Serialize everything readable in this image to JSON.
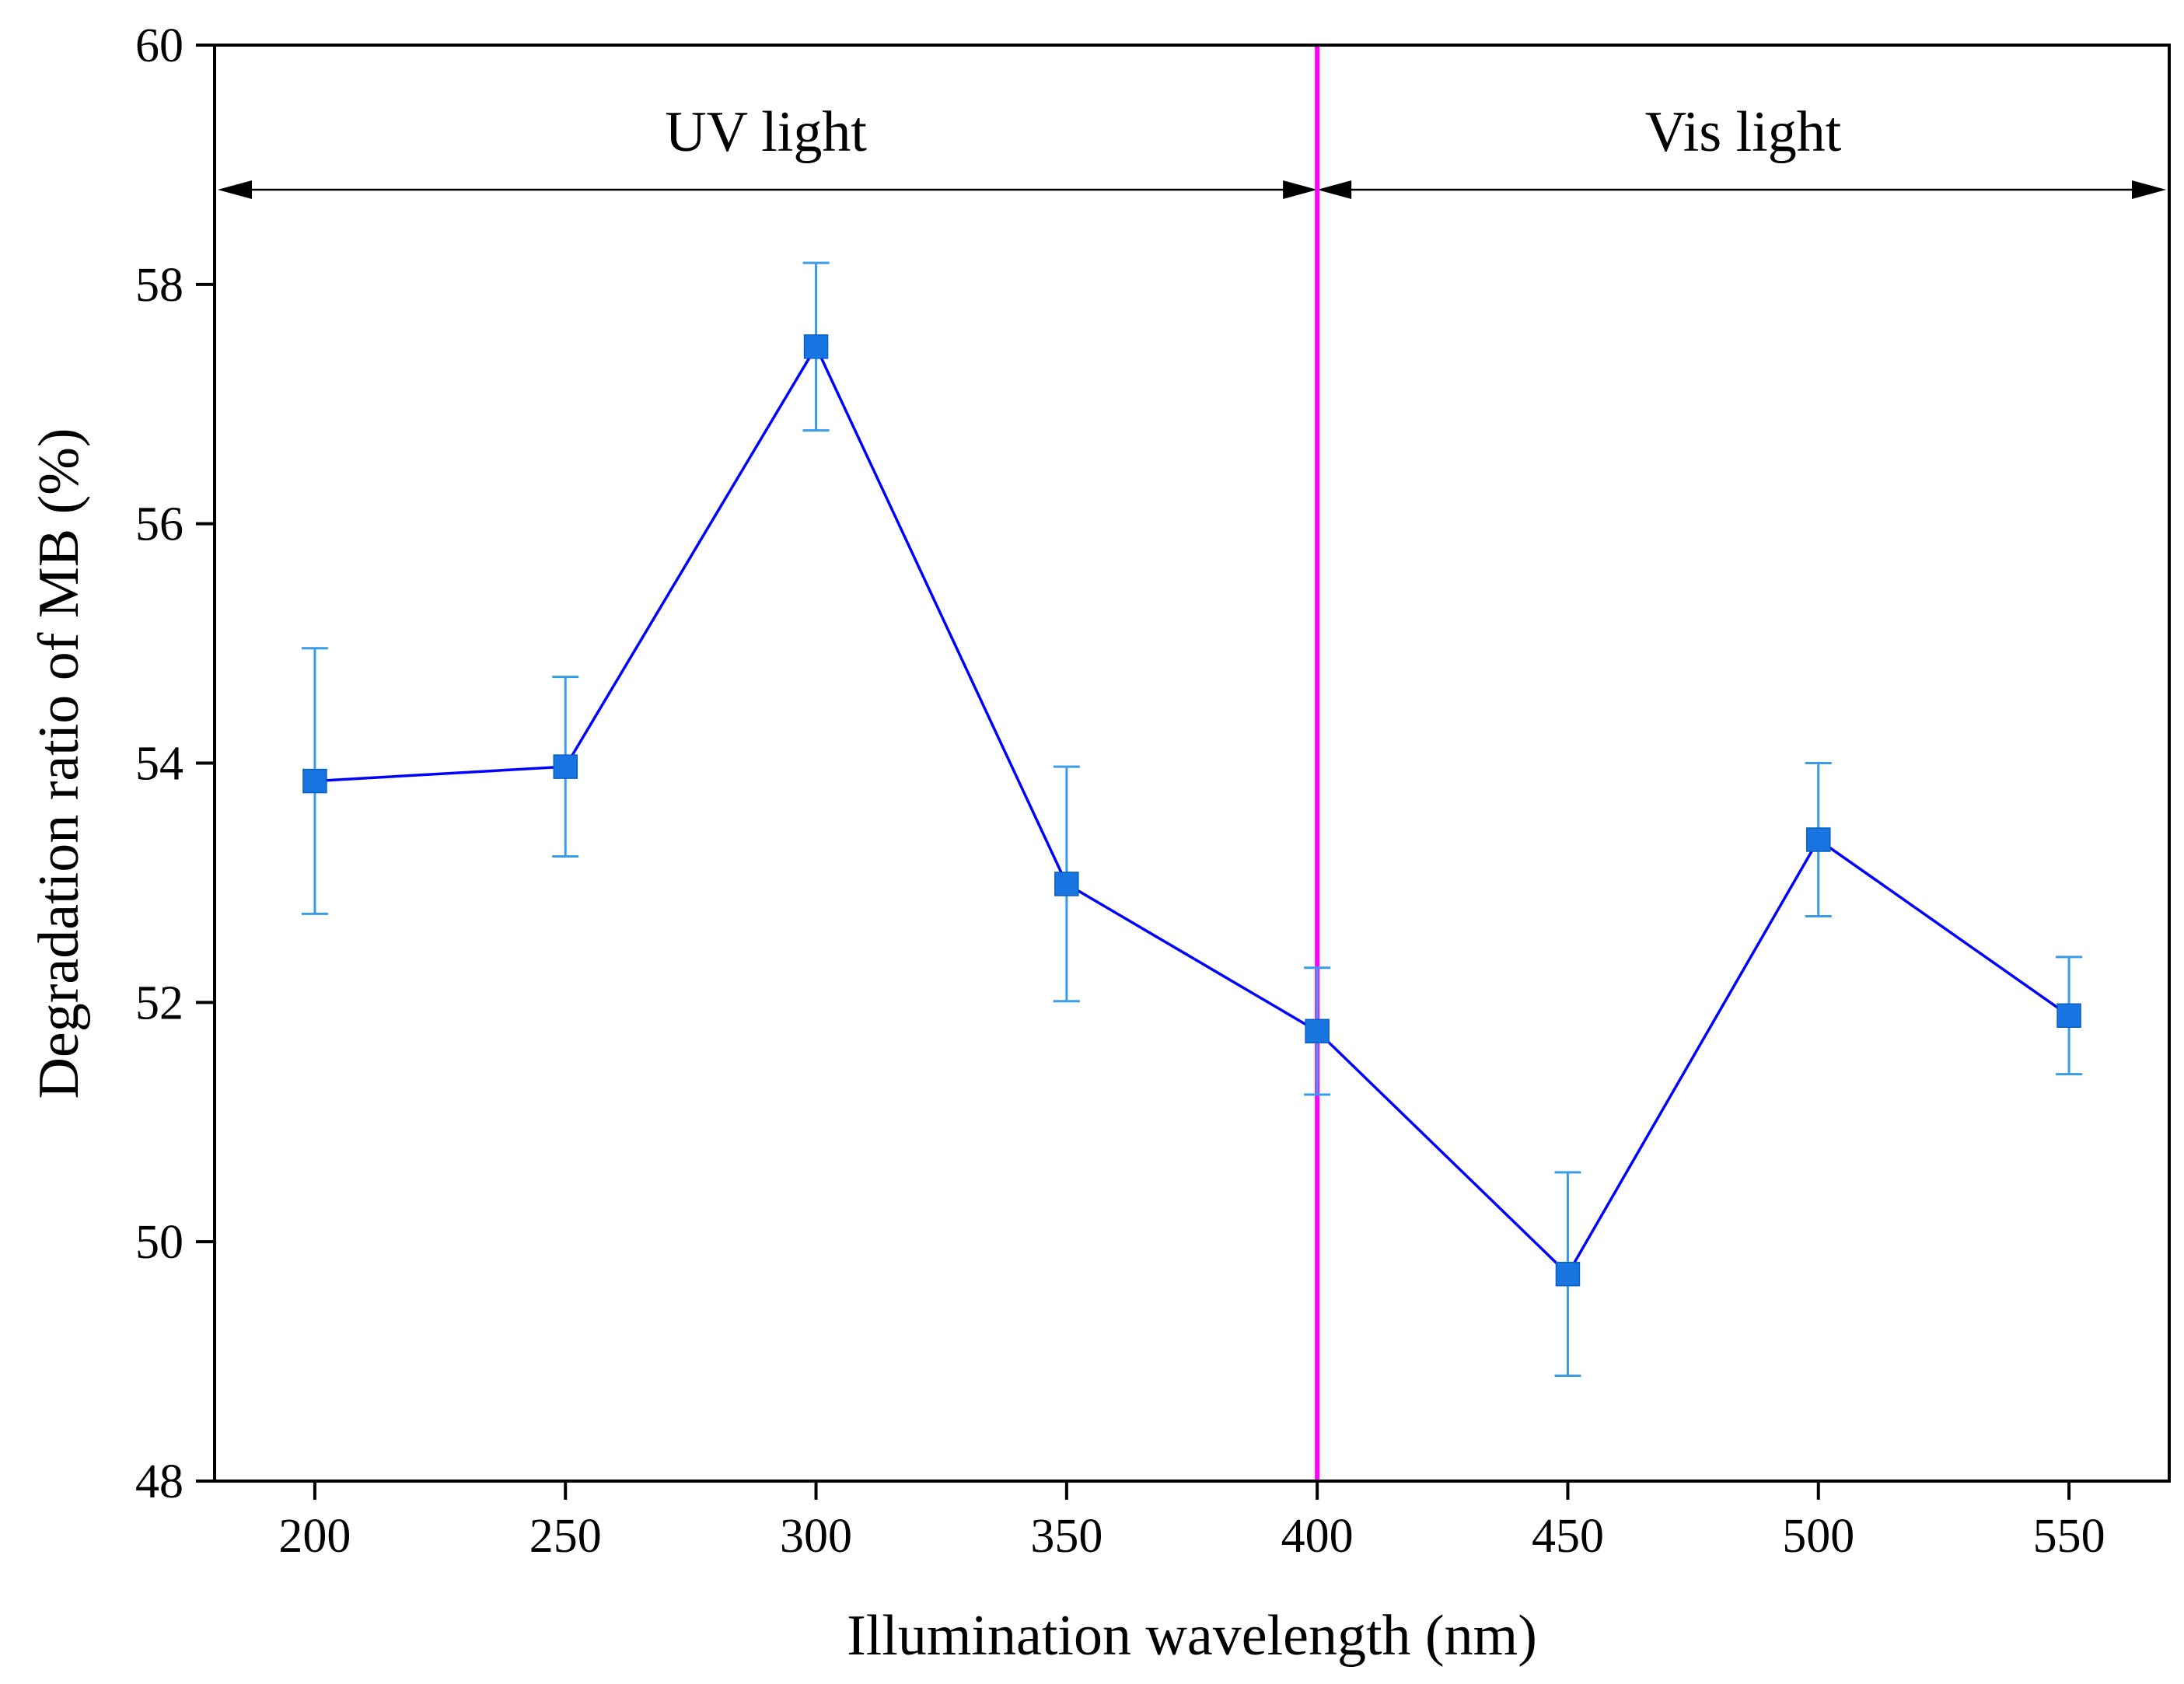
{
  "chart_data": {
    "type": "line",
    "title": "",
    "xlabel": "Illumination wavelength (nm)",
    "ylabel": "Degradation ratio of MB (%)",
    "xlim": [
      180,
      570
    ],
    "ylim": [
      48,
      60
    ],
    "x_ticks": [
      200,
      250,
      300,
      350,
      400,
      450,
      500,
      550
    ],
    "y_ticks": [
      48,
      50,
      52,
      54,
      56,
      58,
      60
    ],
    "grid": false,
    "series": [
      {
        "name": "Degradation ratio",
        "color": "#0000ff",
        "marker": "square",
        "marker_color": "#1874e0",
        "error_bar_color": "#3a9ce8",
        "x": [
          200,
          250,
          300,
          350,
          400,
          450,
          500,
          550
        ],
        "y": [
          53.85,
          53.97,
          57.48,
          52.99,
          51.76,
          49.73,
          53.36,
          51.89
        ],
        "error": [
          1.11,
          0.75,
          0.7,
          0.98,
          0.53,
          0.85,
          0.64,
          0.49
        ]
      }
    ],
    "divider": {
      "x": 400,
      "color": "#ff00ff"
    },
    "regions": [
      {
        "label": "UV light",
        "from": 180,
        "to": 400
      },
      {
        "label": "Vis light",
        "from": 400,
        "to": 570
      }
    ]
  }
}
